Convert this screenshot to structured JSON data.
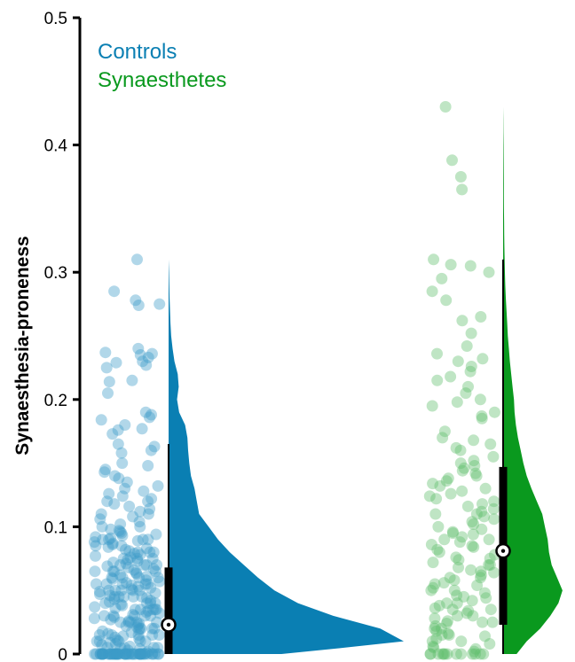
{
  "chart_data": {
    "type": "scatter",
    "subtype": "raincloud",
    "ylabel": "Synaesthesia-proneness",
    "ylim": [
      0,
      0.5
    ],
    "yticks": [
      {
        "v": 0,
        "label": "0"
      },
      {
        "v": 0.1,
        "label": "0.1"
      },
      {
        "v": 0.2,
        "label": "0.2"
      },
      {
        "v": 0.3,
        "label": "0.3"
      },
      {
        "v": 0.4,
        "label": "0.4"
      },
      {
        "v": 0.5,
        "label": "0.5"
      }
    ],
    "legend_position": "top-left",
    "series": [
      {
        "name": "Controls",
        "color": "#0a7fb3",
        "point_color": "#3d9cc8",
        "median": 0.023,
        "q1": 0.0,
        "q3": 0.068,
        "whisker_low": 0.0,
        "whisker_high": 0.165,
        "max": 0.31,
        "density": [
          [
            0.0,
            0.48
          ],
          [
            0.005,
            0.75
          ],
          [
            0.01,
            1.0
          ],
          [
            0.02,
            0.9
          ],
          [
            0.03,
            0.7
          ],
          [
            0.04,
            0.55
          ],
          [
            0.05,
            0.45
          ],
          [
            0.06,
            0.38
          ],
          [
            0.07,
            0.32
          ],
          [
            0.08,
            0.26
          ],
          [
            0.09,
            0.21
          ],
          [
            0.1,
            0.17
          ],
          [
            0.11,
            0.13
          ],
          [
            0.12,
            0.12
          ],
          [
            0.13,
            0.11
          ],
          [
            0.14,
            0.095
          ],
          [
            0.15,
            0.088
          ],
          [
            0.16,
            0.083
          ],
          [
            0.17,
            0.08
          ],
          [
            0.18,
            0.07
          ],
          [
            0.19,
            0.045
          ],
          [
            0.2,
            0.036
          ],
          [
            0.21,
            0.043
          ],
          [
            0.22,
            0.039
          ],
          [
            0.23,
            0.025
          ],
          [
            0.24,
            0.017
          ],
          [
            0.25,
            0.011
          ],
          [
            0.26,
            0.008
          ],
          [
            0.27,
            0.006
          ],
          [
            0.28,
            0.004
          ],
          [
            0.29,
            0.003
          ],
          [
            0.3,
            0.002
          ],
          [
            0.31,
            0.0
          ]
        ],
        "points": [
          0.31,
          0.285,
          0.278,
          0.275,
          0.274,
          0.24,
          0.237,
          0.236,
          0.235,
          0.233,
          0.23,
          0.229,
          0.227,
          0.225,
          0.215,
          0.214,
          0.205,
          0.19,
          0.188,
          0.186,
          0.184,
          0.18,
          0.177,
          0.176,
          0.173,
          0.165,
          0.163,
          0.16,
          0.158,
          0.15,
          0.148,
          0.145,
          0.143,
          0.14,
          0.138,
          0.135,
          0.132,
          0.13,
          0.128,
          0.126,
          0.124,
          0.122,
          0.12,
          0.118,
          0.116,
          0.114,
          0.112,
          0.11,
          0.108,
          0.106,
          0.104,
          0.102,
          0.1,
          0.098,
          0.097,
          0.096,
          0.095,
          0.094,
          0.093,
          0.092,
          0.091,
          0.09,
          0.089,
          0.088,
          0.087,
          0.086,
          0.085,
          0.084,
          0.083,
          0.082,
          0.081,
          0.08,
          0.079,
          0.078,
          0.077,
          0.076,
          0.075,
          0.074,
          0.073,
          0.072,
          0.071,
          0.07,
          0.069,
          0.068,
          0.067,
          0.066,
          0.065,
          0.064,
          0.063,
          0.062,
          0.061,
          0.06,
          0.059,
          0.058,
          0.057,
          0.056,
          0.055,
          0.054,
          0.053,
          0.052,
          0.051,
          0.05,
          0.049,
          0.048,
          0.047,
          0.046,
          0.045,
          0.044,
          0.043,
          0.042,
          0.041,
          0.04,
          0.039,
          0.038,
          0.037,
          0.036,
          0.035,
          0.034,
          0.033,
          0.032,
          0.031,
          0.03,
          0.029,
          0.028,
          0.027,
          0.026,
          0.025,
          0.024,
          0.023,
          0.022,
          0.021,
          0.02,
          0.019,
          0.018,
          0.017,
          0.016,
          0.015,
          0.014,
          0.013,
          0.012,
          0.011,
          0.01,
          0.009,
          0.008,
          0.007,
          0.006,
          0.005,
          0.004,
          0.003,
          0.002,
          0.001,
          0.0,
          0.0,
          0.0,
          0.0,
          0.0,
          0.0,
          0.0,
          0.0,
          0.0,
          0.0,
          0.0,
          0.0,
          0.0,
          0.0,
          0.0,
          0.0,
          0.0,
          0.0,
          0.0,
          0.0,
          0.0,
          0.0,
          0.0,
          0.0,
          0.0,
          0.0,
          0.0,
          0.0,
          0.0,
          0.0,
          0.0,
          0.0,
          0.0,
          0.0,
          0.0,
          0.0,
          0.0,
          0.0,
          0.0,
          0.0,
          0.0,
          0.0,
          0.0,
          0.0,
          0.0,
          0.0,
          0.0,
          0.0,
          0.0,
          0.0,
          0.0,
          0.06,
          0.055,
          0.05,
          0.045,
          0.04,
          0.035,
          0.03,
          0.025,
          0.02,
          0.015,
          0.01,
          0.005,
          0.07,
          0.065,
          0.06,
          0.055,
          0.05,
          0.045,
          0.04,
          0.035,
          0.03,
          0.025,
          0.02,
          0.015,
          0.01,
          0.005,
          0.08,
          0.075,
          0.065,
          0.055,
          0.045,
          0.035,
          0.025,
          0.015,
          0.005,
          0.09,
          0.085,
          0.075,
          0.065,
          0.055,
          0.045,
          0.035,
          0.025,
          0.015,
          0.005,
          0.1,
          0.09,
          0.08,
          0.07,
          0.06,
          0.05,
          0.04,
          0.03,
          0.02,
          0.01,
          0.12,
          0.11,
          0.09,
          0.07,
          0.05,
          0.03,
          0.01
        ]
      },
      {
        "name": "Synaesthetes",
        "color": "#0a991e",
        "point_color": "#5ebd6b",
        "median": 0.081,
        "q1": 0.023,
        "q3": 0.147,
        "whisker_low": 0.0,
        "whisker_high": 0.31,
        "max": 0.43,
        "density": [
          [
            0.0,
            0.2
          ],
          [
            0.01,
            0.35
          ],
          [
            0.02,
            0.55
          ],
          [
            0.03,
            0.7
          ],
          [
            0.04,
            0.82
          ],
          [
            0.05,
            0.88
          ],
          [
            0.06,
            0.8
          ],
          [
            0.07,
            0.72
          ],
          [
            0.08,
            0.68
          ],
          [
            0.09,
            0.66
          ],
          [
            0.1,
            0.62
          ],
          [
            0.11,
            0.58
          ],
          [
            0.12,
            0.5
          ],
          [
            0.13,
            0.42
          ],
          [
            0.14,
            0.35
          ],
          [
            0.15,
            0.3
          ],
          [
            0.16,
            0.26
          ],
          [
            0.17,
            0.22
          ],
          [
            0.18,
            0.19
          ],
          [
            0.19,
            0.17
          ],
          [
            0.2,
            0.16
          ],
          [
            0.21,
            0.14
          ],
          [
            0.22,
            0.12
          ],
          [
            0.23,
            0.1
          ],
          [
            0.24,
            0.085
          ],
          [
            0.25,
            0.07
          ],
          [
            0.26,
            0.06
          ],
          [
            0.27,
            0.05
          ],
          [
            0.28,
            0.04
          ],
          [
            0.29,
            0.032
          ],
          [
            0.3,
            0.026
          ],
          [
            0.31,
            0.022
          ],
          [
            0.32,
            0.018
          ],
          [
            0.33,
            0.016
          ],
          [
            0.34,
            0.014
          ],
          [
            0.35,
            0.012
          ],
          [
            0.36,
            0.011
          ],
          [
            0.37,
            0.01
          ],
          [
            0.38,
            0.009
          ],
          [
            0.39,
            0.008
          ],
          [
            0.4,
            0.006
          ],
          [
            0.41,
            0.004
          ],
          [
            0.42,
            0.002
          ],
          [
            0.43,
            0.0
          ]
        ],
        "points": [
          0.43,
          0.388,
          0.375,
          0.365,
          0.31,
          0.306,
          0.305,
          0.3,
          0.295,
          0.285,
          0.278,
          0.265,
          0.262,
          0.252,
          0.242,
          0.236,
          0.232,
          0.23,
          0.226,
          0.222,
          0.218,
          0.215,
          0.21,
          0.205,
          0.2,
          0.198,
          0.195,
          0.19,
          0.187,
          0.185,
          0.175,
          0.17,
          0.168,
          0.165,
          0.162,
          0.16,
          0.155,
          0.152,
          0.15,
          0.148,
          0.146,
          0.144,
          0.142,
          0.14,
          0.138,
          0.136,
          0.134,
          0.132,
          0.13,
          0.128,
          0.126,
          0.124,
          0.122,
          0.12,
          0.118,
          0.116,
          0.114,
          0.112,
          0.11,
          0.108,
          0.106,
          0.104,
          0.102,
          0.1,
          0.098,
          0.096,
          0.094,
          0.092,
          0.09,
          0.088,
          0.086,
          0.084,
          0.082,
          0.08,
          0.078,
          0.076,
          0.074,
          0.072,
          0.07,
          0.068,
          0.066,
          0.064,
          0.062,
          0.06,
          0.058,
          0.056,
          0.054,
          0.052,
          0.05,
          0.048,
          0.046,
          0.044,
          0.042,
          0.04,
          0.038,
          0.036,
          0.034,
          0.032,
          0.03,
          0.028,
          0.026,
          0.024,
          0.022,
          0.02,
          0.018,
          0.016,
          0.014,
          0.012,
          0.01,
          0.008,
          0.006,
          0.004,
          0.002,
          0.0,
          0.0,
          0.0,
          0.0,
          0.0,
          0.0,
          0.0,
          0.0,
          0.0,
          0.0,
          0.0,
          0.0,
          0.0,
          0.06,
          0.05,
          0.04,
          0.03,
          0.02,
          0.01,
          0.07,
          0.055,
          0.045,
          0.035,
          0.025,
          0.015,
          0.005,
          0.09,
          0.075,
          0.065,
          0.035,
          0.025,
          0.015,
          0.11,
          0.095,
          0.085
        ]
      }
    ]
  }
}
